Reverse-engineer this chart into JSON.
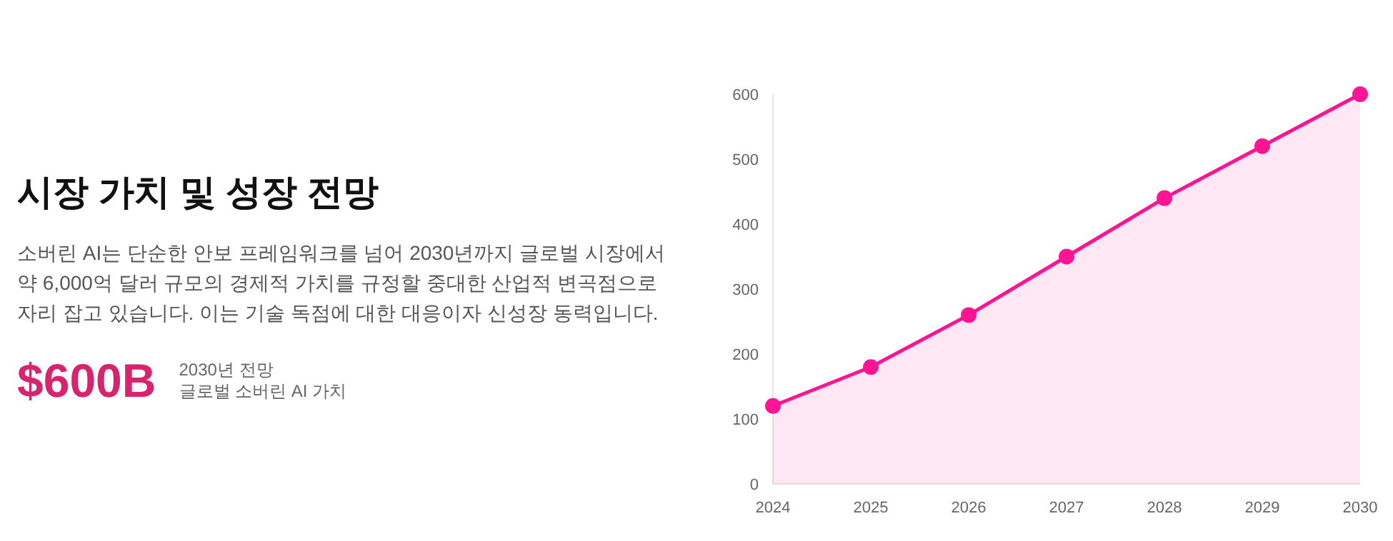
{
  "chart_data": [
    {
      "type": "other",
      "title": "시장 가치 및 성장 전망",
      "annotations": [
        "소버린 AI는 단순한 안보 프레임워크를 넘어 2030년까지 글로벌 시장에서 약 6,000억 달러 규모의 경제적 가치를 규정할 중대한 산업적 변곡점으로 자리 잡고 있습니다. 이는 기술 독점에 대한 대응이자 신성장 동력입니다.",
        "$600B",
        "2030년 전망",
        "글로벌 소버린 AI 가치"
      ]
    },
    {
      "type": "area",
      "categories": [
        "2024",
        "2025",
        "2026",
        "2027",
        "2028",
        "2029",
        "2030"
      ],
      "series": [
        {
          "color": "#ff1493",
          "values": [
            120,
            180,
            260,
            350,
            440,
            520,
            600
          ]
        }
      ],
      "ylim": [
        0,
        600
      ],
      "yticks": [
        0,
        100,
        200,
        300,
        400,
        500,
        600
      ],
      "marker": "circle",
      "grid": false
    }
  ]
}
